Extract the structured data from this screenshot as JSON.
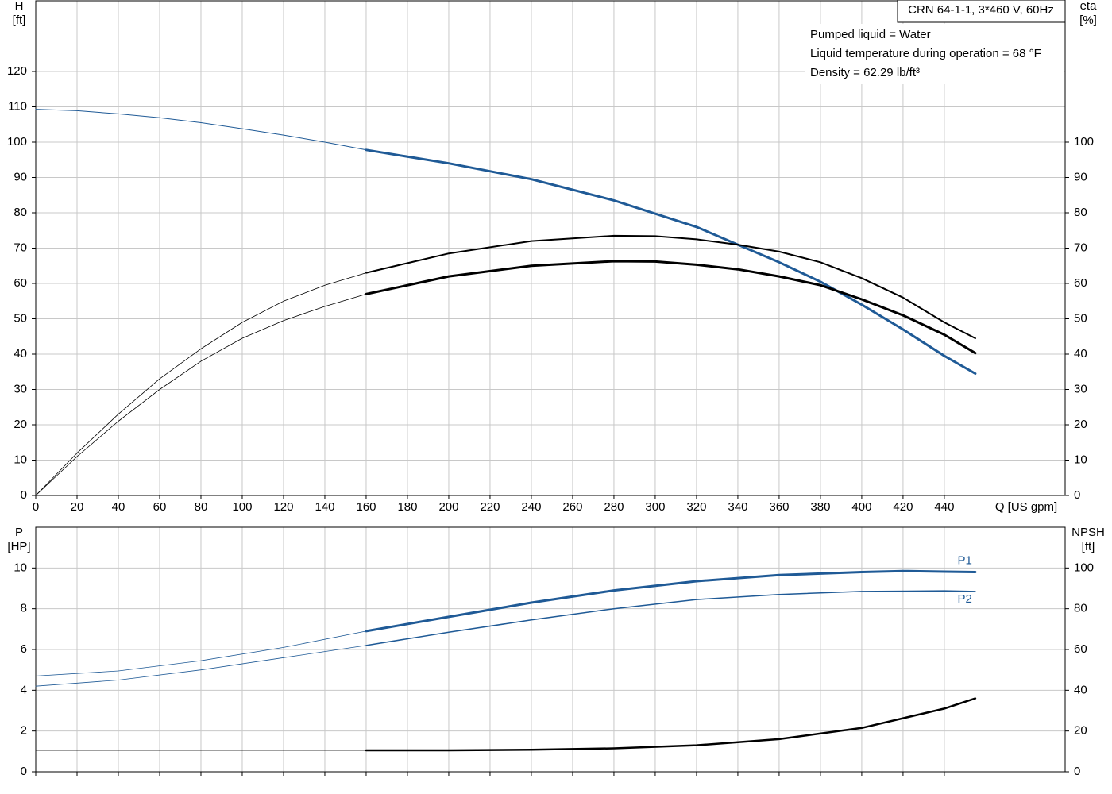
{
  "chart_data": [
    {
      "type": "line",
      "title": "CRN 64-1-1, 3*460 V, 60Hz",
      "annotations": [
        "Pumped liquid = Water",
        "Liquid temperature during operation = 68 °F",
        "Density = 62.29 lb/ft³"
      ],
      "x_label": "Q [US gpm]",
      "y_label": "H",
      "y_unit": "[ft]",
      "y2_label": "eta",
      "y2_unit": "[%]",
      "xlim": [
        0,
        498.5
      ],
      "xticks": [
        0,
        20,
        40,
        60,
        80,
        100,
        120,
        140,
        160,
        180,
        200,
        220,
        240,
        260,
        280,
        300,
        320,
        340,
        360,
        380,
        400,
        420,
        440
      ],
      "ylim": [
        0,
        140
      ],
      "yticks": [
        0,
        10,
        20,
        30,
        40,
        50,
        60,
        70,
        80,
        90,
        100,
        110,
        120
      ],
      "y2lim": [
        0,
        140
      ],
      "y2ticks": [
        0,
        10,
        20,
        30,
        40,
        50,
        60,
        70,
        80,
        90,
        100
      ],
      "grid": true,
      "series": [
        {
          "color": "#1f5a96",
          "width": 1,
          "x": [
            0,
            20,
            40,
            60,
            80,
            100,
            120,
            140,
            160
          ],
          "values": [
            109.3,
            108.9,
            108,
            106.9,
            105.5,
            103.8,
            102,
            100,
            97.8
          ]
        },
        {
          "color": "#1f5a96",
          "width": 3,
          "x": [
            160,
            200,
            240,
            280,
            320,
            340,
            360,
            380,
            400,
            420,
            440,
            455
          ],
          "values": [
            97.8,
            94,
            89.5,
            83.5,
            76,
            71,
            66,
            60.5,
            54,
            47,
            39.5,
            34.5
          ]
        },
        {
          "color": "#000000",
          "width": 0.8,
          "axis": "y2",
          "x": [
            0,
            20,
            40,
            60,
            80,
            100,
            120,
            140,
            160
          ],
          "values": [
            0,
            12,
            23,
            33,
            41.5,
            49,
            55,
            59.5,
            63
          ]
        },
        {
          "color": "#000000",
          "width": 2,
          "axis": "y2",
          "x": [
            160,
            200,
            240,
            280,
            300,
            320,
            340,
            360,
            380,
            400,
            420,
            440,
            455
          ],
          "values": [
            63,
            68.5,
            72,
            73.5,
            73.4,
            72.5,
            71,
            69,
            66,
            61.5,
            56,
            49,
            44.5
          ]
        },
        {
          "color": "#000000",
          "width": 0.8,
          "axis": "y2",
          "x": [
            0,
            20,
            40,
            60,
            80,
            100,
            120,
            140,
            160
          ],
          "values": [
            0,
            11,
            21,
            30,
            38,
            44.5,
            49.5,
            53.5,
            57
          ]
        },
        {
          "color": "#000000",
          "width": 3,
          "axis": "y2",
          "x": [
            160,
            200,
            240,
            280,
            300,
            320,
            340,
            360,
            380,
            400,
            420,
            440,
            455
          ],
          "values": [
            57,
            62,
            65,
            66.3,
            66.2,
            65.3,
            64,
            62,
            59.5,
            55.5,
            51,
            45.5,
            40.3
          ]
        }
      ]
    },
    {
      "type": "line",
      "y_label": "P",
      "y_unit": "[HP]",
      "y2_label": "NPSH",
      "y2_unit": "[ft]",
      "ylim": [
        0,
        12
      ],
      "yticks": [
        0,
        2,
        4,
        6,
        8,
        10
      ],
      "y2lim": [
        0,
        120
      ],
      "y2ticks": [
        0,
        20,
        40,
        60,
        80,
        100
      ],
      "grid": true,
      "series": [
        {
          "color": "#1f5a96",
          "width": 0.8,
          "x": [
            0,
            40,
            80,
            120,
            160
          ],
          "values": [
            4.7,
            4.95,
            5.45,
            6.1,
            6.9
          ]
        },
        {
          "name": "P1",
          "color": "#1f5a96",
          "width": 3,
          "x": [
            160,
            200,
            240,
            280,
            320,
            360,
            400,
            420,
            440,
            455
          ],
          "values": [
            6.9,
            7.6,
            8.3,
            8.9,
            9.35,
            9.65,
            9.8,
            9.85,
            9.82,
            9.8
          ]
        },
        {
          "color": "#1f5a96",
          "width": 0.8,
          "x": [
            0,
            40,
            80,
            120,
            160
          ],
          "values": [
            4.2,
            4.5,
            5,
            5.6,
            6.2
          ]
        },
        {
          "name": "P2",
          "color": "#1f5a96",
          "width": 1.5,
          "x": [
            160,
            200,
            240,
            280,
            320,
            360,
            400,
            440,
            455
          ],
          "values": [
            6.2,
            6.85,
            7.45,
            8,
            8.45,
            8.7,
            8.85,
            8.88,
            8.85
          ]
        },
        {
          "color": "#000000",
          "width": 0.8,
          "axis": "y2",
          "x": [
            0,
            160
          ],
          "values": [
            10.5,
            10.5
          ]
        },
        {
          "color": "#000000",
          "width": 2.5,
          "axis": "y2",
          "x": [
            160,
            200,
            240,
            280,
            320,
            360,
            400,
            440,
            455
          ],
          "values": [
            10.5,
            10.5,
            10.8,
            11.5,
            13,
            16,
            21.5,
            31,
            36
          ]
        }
      ]
    }
  ]
}
